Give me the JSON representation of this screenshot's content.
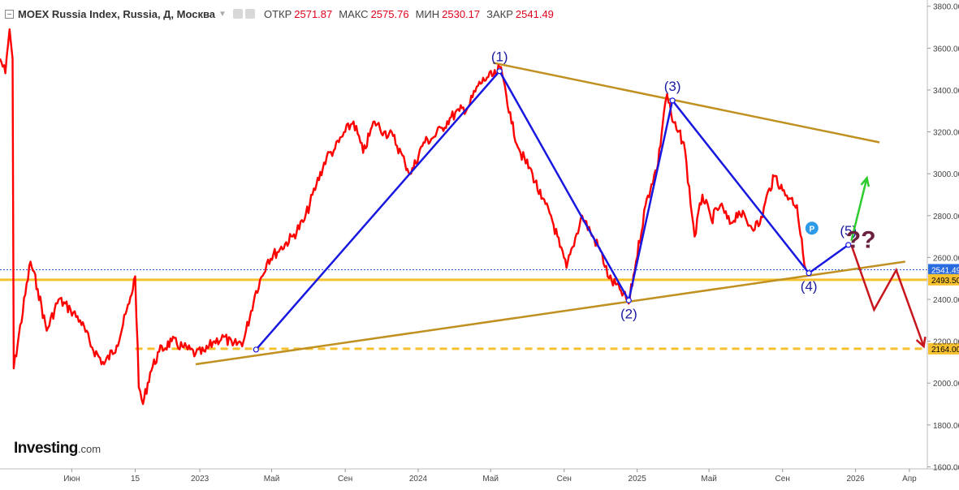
{
  "header": {
    "title": "MOEX Russia Index, Russia, Д, Москва",
    "open_label": "ОТКР",
    "open_value": "2571.87",
    "high_label": "МАКС",
    "high_value": "2575.76",
    "low_label": "МИН",
    "low_value": "2530.17",
    "close_label": "ЗАКР",
    "close_value": "2541.49"
  },
  "logo": {
    "brand": "Investing",
    "domain": ".com"
  },
  "colors": {
    "price": "#ff0000",
    "wave": "#1818e0",
    "trend": "#c09020",
    "support": "#f7c02e",
    "bull": "#2ecc2e",
    "bear": "#c8161d",
    "question": "#6b2040"
  },
  "chart_data": {
    "type": "line",
    "title": "MOEX Russia Index",
    "y_axis": {
      "ticks": [
        "3800.00",
        "3600.00",
        "3400.00",
        "3200.00",
        "3000.00",
        "2800.00",
        "2600.00",
        "2400.00",
        "2200.00",
        "2000.00",
        "1800.00",
        "1600.00"
      ],
      "range": [
        1590,
        3830
      ]
    },
    "x_axis": {
      "ticks": [
        "Июн",
        "15",
        "2023",
        "Май",
        "Сен",
        "2024",
        "Май",
        "Сен",
        "2025",
        "Май",
        "Сен",
        "2026",
        "Апр"
      ],
      "range": [
        "2022-02-01",
        "2026-05-01"
      ]
    },
    "series": [
      {
        "values": [
          {
            "x": "2022-02-01",
            "y": 3550
          },
          {
            "x": "2022-02-10",
            "y": 3480
          },
          {
            "x": "2022-02-17",
            "y": 3690
          },
          {
            "x": "2022-02-22",
            "y": 3550
          },
          {
            "x": "2022-02-24",
            "y": 2070
          },
          {
            "x": "2022-03-24",
            "y": 2580
          },
          {
            "x": "2022-04-05",
            "y": 2450
          },
          {
            "x": "2022-04-20",
            "y": 2250
          },
          {
            "x": "2022-05-10",
            "y": 2400
          },
          {
            "x": "2022-05-30",
            "y": 2350
          },
          {
            "x": "2022-06-15",
            "y": 2300
          },
          {
            "x": "2022-07-05",
            "y": 2170
          },
          {
            "x": "2022-07-25",
            "y": 2090
          },
          {
            "x": "2022-08-15",
            "y": 2180
          },
          {
            "x": "2022-09-05",
            "y": 2380
          },
          {
            "x": "2022-09-15",
            "y": 2510
          },
          {
            "x": "2022-09-21",
            "y": 1980
          },
          {
            "x": "2022-09-28",
            "y": 1900
          },
          {
            "x": "2022-10-10",
            "y": 2050
          },
          {
            "x": "2022-10-25",
            "y": 2150
          },
          {
            "x": "2022-11-15",
            "y": 2200
          },
          {
            "x": "2022-12-05",
            "y": 2170
          },
          {
            "x": "2022-12-25",
            "y": 2140
          },
          {
            "x": "2023-01-10",
            "y": 2150
          },
          {
            "x": "2023-01-25",
            "y": 2200
          },
          {
            "x": "2023-02-10",
            "y": 2220
          },
          {
            "x": "2023-02-25",
            "y": 2180
          },
          {
            "x": "2023-03-15",
            "y": 2200
          },
          {
            "x": "2023-04-05",
            "y": 2440
          },
          {
            "x": "2023-04-25",
            "y": 2590
          },
          {
            "x": "2023-05-15",
            "y": 2640
          },
          {
            "x": "2023-06-05",
            "y": 2700
          },
          {
            "x": "2023-06-25",
            "y": 2780
          },
          {
            "x": "2023-07-15",
            "y": 2950
          },
          {
            "x": "2023-08-01",
            "y": 3080
          },
          {
            "x": "2023-08-15",
            "y": 3120
          },
          {
            "x": "2023-09-01",
            "y": 3200
          },
          {
            "x": "2023-09-15",
            "y": 3250
          },
          {
            "x": "2023-10-01",
            "y": 3100
          },
          {
            "x": "2023-10-20",
            "y": 3250
          },
          {
            "x": "2023-11-05",
            "y": 3200
          },
          {
            "x": "2023-11-20",
            "y": 3180
          },
          {
            "x": "2023-12-10",
            "y": 3050
          },
          {
            "x": "2023-12-20",
            "y": 3000
          },
          {
            "x": "2024-01-10",
            "y": 3150
          },
          {
            "x": "2024-01-25",
            "y": 3170
          },
          {
            "x": "2024-02-10",
            "y": 3220
          },
          {
            "x": "2024-02-25",
            "y": 3270
          },
          {
            "x": "2024-03-10",
            "y": 3300
          },
          {
            "x": "2024-03-25",
            "y": 3320
          },
          {
            "x": "2024-04-10",
            "y": 3420
          },
          {
            "x": "2024-04-25",
            "y": 3460
          },
          {
            "x": "2024-05-10",
            "y": 3470
          },
          {
            "x": "2024-05-16",
            "y": 3510
          },
          {
            "x": "2024-05-25",
            "y": 3420
          },
          {
            "x": "2024-06-05",
            "y": 3240
          },
          {
            "x": "2024-06-20",
            "y": 3100
          },
          {
            "x": "2024-07-10",
            "y": 3000
          },
          {
            "x": "2024-07-25",
            "y": 2880
          },
          {
            "x": "2024-08-10",
            "y": 2800
          },
          {
            "x": "2024-08-25",
            "y": 2650
          },
          {
            "x": "2024-09-05",
            "y": 2550
          },
          {
            "x": "2024-09-15",
            "y": 2650
          },
          {
            "x": "2024-10-01",
            "y": 2800
          },
          {
            "x": "2024-10-15",
            "y": 2720
          },
          {
            "x": "2024-11-01",
            "y": 2630
          },
          {
            "x": "2024-11-15",
            "y": 2500
          },
          {
            "x": "2024-12-05",
            "y": 2440
          },
          {
            "x": "2024-12-18",
            "y": 2380
          },
          {
            "x": "2024-12-30",
            "y": 2580
          },
          {
            "x": "2025-01-15",
            "y": 2850
          },
          {
            "x": "2025-01-25",
            "y": 2950
          },
          {
            "x": "2025-02-05",
            "y": 3050
          },
          {
            "x": "2025-02-15",
            "y": 3300
          },
          {
            "x": "2025-02-20",
            "y": 3380
          },
          {
            "x": "2025-03-01",
            "y": 3250
          },
          {
            "x": "2025-03-10",
            "y": 3200
          },
          {
            "x": "2025-03-20",
            "y": 3150
          },
          {
            "x": "2025-04-07",
            "y": 2700
          },
          {
            "x": "2025-04-20",
            "y": 2900
          },
          {
            "x": "2025-05-05",
            "y": 2780
          },
          {
            "x": "2025-05-20",
            "y": 2850
          },
          {
            "x": "2025-06-05",
            "y": 2760
          },
          {
            "x": "2025-06-20",
            "y": 2820
          },
          {
            "x": "2025-07-10",
            "y": 2750
          },
          {
            "x": "2025-07-25",
            "y": 2760
          },
          {
            "x": "2025-08-10",
            "y": 2930
          },
          {
            "x": "2025-08-20",
            "y": 2990
          },
          {
            "x": "2025-09-01",
            "y": 2920
          },
          {
            "x": "2025-09-15",
            "y": 2880
          },
          {
            "x": "2025-09-25",
            "y": 2850
          },
          {
            "x": "2025-10-05",
            "y": 2620
          },
          {
            "x": "2025-10-10",
            "y": 2541
          }
        ]
      }
    ],
    "price_labels": [
      {
        "label": "2541.49",
        "value": 2541.49
      },
      {
        "label": "2493.50",
        "value": 2493.5
      },
      {
        "label": "2164.00",
        "value": 2164
      }
    ],
    "wave_points": [
      {
        "label": "",
        "x": "2023-04-05",
        "y": 2160
      },
      {
        "label": "(1)",
        "x": "2024-05-16",
        "y": 3490
      },
      {
        "label": "(2)",
        "x": "2024-12-18",
        "y": 2395
      },
      {
        "label": "(3)",
        "x": "2025-03-01",
        "y": 3350
      },
      {
        "label": "(4)",
        "x": "2025-10-15",
        "y": 2525
      },
      {
        "label": "(5)",
        "x": "2025-12-20",
        "y": 2660
      }
    ],
    "trendlines": [
      {
        "points": [
          {
            "x": "2022-12-25",
            "y": 2090
          },
          {
            "x": "2026-03-25",
            "y": 2580
          }
        ]
      },
      {
        "points": [
          {
            "x": "2024-05-05",
            "y": 3530
          },
          {
            "x": "2026-02-10",
            "y": 3150
          }
        ]
      }
    ],
    "horizontal_lines": [
      {
        "value": 2493.5,
        "style": "solid"
      },
      {
        "value": 2164,
        "style": "dashed"
      }
    ],
    "scenario_bull": [
      {
        "x": "2025-12-25",
        "y": 2680
      },
      {
        "x": "2026-01-20",
        "y": 2980
      }
    ],
    "scenario_bear": [
      {
        "x": "2025-12-25",
        "y": 2660
      },
      {
        "x": "2026-02-01",
        "y": 2350
      },
      {
        "x": "2026-03-10",
        "y": 2540
      },
      {
        "x": "2026-04-25",
        "y": 2175
      }
    ],
    "marker_P": {
      "x": "2025-10-20",
      "y": 2740
    },
    "annotation": "??"
  }
}
